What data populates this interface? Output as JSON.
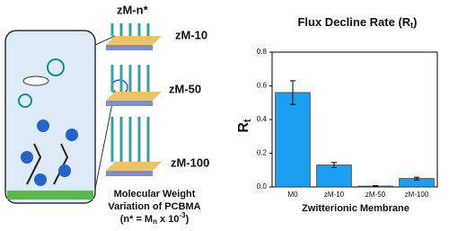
{
  "chart_data": {
    "type": "bar",
    "title": [
      "Flux Decline Rate (R",
      "t",
      ")"
    ],
    "y_label": [
      "R",
      "t"
    ],
    "x_label": "Zwitterionic Membrane",
    "categories": [
      "M0",
      "zM-10",
      "zM-50",
      "zM-100"
    ],
    "values": [
      0.56,
      0.13,
      0.005,
      0.05
    ],
    "errors": [
      0.07,
      0.015,
      0.003,
      0.008
    ],
    "color": "#1ea0f2",
    "ylim": [
      0,
      0.8
    ],
    "yticks": [
      {
        "value": 0,
        "label": "0.0"
      },
      0.2,
      0.4,
      0.6,
      0.8
    ]
  },
  "illustration": {
    "series_label": "zM-n*",
    "labels": [
      "zM-10",
      "zM-50",
      "zM-100"
    ],
    "caption": [
      "Molecular Weight",
      "Variation of PCBMA"
    ],
    "formula": [
      "(n* = M",
      "n",
      " x 10",
      "-3",
      ")"
    ]
  }
}
